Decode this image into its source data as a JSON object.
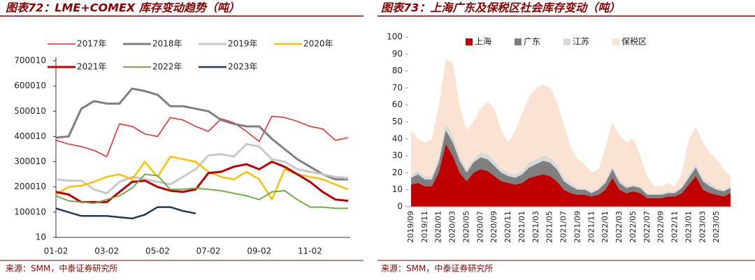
{
  "chart_data": [
    {
      "type": "line",
      "title": "图表72：LME+COMEX 库存变动趋势（吨）",
      "source": "来源：SMM，中泰证券研究所",
      "categories": [
        "01-02",
        null,
        null,
        null,
        "03-02",
        null,
        null,
        null,
        "05-02",
        null,
        null,
        null,
        "07-02",
        null,
        null,
        null,
        "09-02",
        null,
        null,
        null,
        "11-02",
        null,
        null,
        null
      ],
      "ylim": [
        10,
        700010
      ],
      "yticks": [
        10,
        100010,
        200010,
        300010,
        400010,
        500010,
        600010,
        700010
      ],
      "series": [
        {
          "name": "2017年",
          "color": "#ff2020",
          "width": 1.5,
          "values": [
            385000,
            370000,
            360000,
            345000,
            320000,
            450000,
            440000,
            410000,
            400000,
            475000,
            465000,
            440000,
            420000,
            470000,
            455000,
            420000,
            380000,
            480000,
            475000,
            460000,
            440000,
            430000,
            385000,
            395000
          ]
        },
        {
          "name": "2018年",
          "color": "#7f7f7f",
          "width": 3,
          "values": [
            395000,
            400000,
            510000,
            540000,
            530000,
            530000,
            590000,
            580000,
            565000,
            520000,
            520000,
            510000,
            500000,
            465000,
            450000,
            440000,
            440000,
            390000,
            350000,
            310000,
            280000,
            250000,
            230000,
            230000
          ]
        },
        {
          "name": "2019年",
          "color": "#c8c8c8",
          "width": 3,
          "values": [
            230000,
            225000,
            225000,
            190000,
            175000,
            220000,
            240000,
            230000,
            220000,
            210000,
            240000,
            270000,
            325000,
            330000,
            320000,
            370000,
            360000,
            310000,
            300000,
            270000,
            260000,
            250000,
            240000,
            235000
          ]
        },
        {
          "name": "2020年",
          "color": "#ffc000",
          "width": 2.5,
          "values": [
            170000,
            200000,
            205000,
            220000,
            240000,
            250000,
            230000,
            300000,
            240000,
            320000,
            310000,
            300000,
            260000,
            240000,
            230000,
            260000,
            230000,
            150000,
            270000,
            250000,
            240000,
            230000,
            210000,
            190000
          ]
        },
        {
          "name": "2021年",
          "color": "#c00000",
          "width": 3,
          "values": [
            180000,
            170000,
            140000,
            140000,
            140000,
            180000,
            220000,
            225000,
            200000,
            185000,
            180000,
            190000,
            255000,
            260000,
            280000,
            290000,
            270000,
            300000,
            280000,
            250000,
            220000,
            180000,
            150000,
            145000
          ]
        },
        {
          "name": "2022年",
          "color": "#70ad47",
          "width": 2,
          "values": [
            165000,
            145000,
            140000,
            135000,
            150000,
            165000,
            195000,
            250000,
            245000,
            190000,
            190000,
            195000,
            190000,
            185000,
            175000,
            165000,
            150000,
            180000,
            185000,
            150000,
            120000,
            120000,
            115000,
            115000
          ]
        },
        {
          "name": "2023年",
          "color": "#1f3864",
          "width": 2.5,
          "values": [
            115000,
            100000,
            85000,
            85000,
            85000,
            80000,
            75000,
            90000,
            120000,
            120000,
            105000,
            95000,
            null,
            null,
            null,
            null,
            null,
            null,
            null,
            null,
            null,
            null,
            null,
            null
          ]
        }
      ]
    },
    {
      "type": "stacked_area",
      "title": "图表73：上海广东及保税区社会库存变动（吨）",
      "source": "来源：SMM，中泰证券研究所",
      "categories": [
        "2019/09",
        null,
        "2019/11",
        null,
        "2020/01",
        null,
        "2020/03",
        null,
        "2020/05",
        null,
        "2020/07",
        null,
        "2020/09",
        null,
        "2020/11",
        null,
        "2021/01",
        null,
        "2021/03",
        null,
        "2021/05",
        null,
        "2021/07",
        null,
        "2021/09",
        null,
        "2021/11",
        null,
        "2022/01",
        null,
        "2022/03",
        null,
        "2022/05",
        null,
        "2022/07",
        null,
        "2022/09",
        null,
        "2022/11",
        null,
        "2023/01",
        null,
        "2023/03",
        null,
        "2023/05",
        null,
        null
      ],
      "ylim": [
        0,
        100
      ],
      "yticks": [
        0,
        10,
        20,
        30,
        40,
        50,
        60,
        70,
        80,
        90,
        100
      ],
      "series": [
        {
          "name": "上海",
          "color": "#c00000",
          "values": [
            13,
            14,
            12,
            12,
            20,
            37,
            30,
            20,
            15,
            20,
            22,
            21,
            18,
            15,
            14,
            13,
            14,
            17,
            18,
            19,
            18,
            15,
            10,
            8,
            7,
            7,
            6,
            7,
            10,
            17,
            10,
            8,
            9,
            8,
            5,
            5,
            5,
            6,
            6,
            8,
            13,
            18,
            10,
            8,
            7,
            6,
            8
          ]
        },
        {
          "name": "广东",
          "color": "#7f7f7f",
          "values": [
            4,
            5,
            4,
            4,
            6,
            8,
            8,
            7,
            5,
            6,
            7,
            7,
            6,
            5,
            4,
            4,
            5,
            6,
            7,
            8,
            8,
            7,
            5,
            4,
            3,
            3,
            2,
            3,
            4,
            5,
            4,
            3,
            3,
            3,
            2,
            2,
            2,
            2,
            2,
            3,
            4,
            5,
            5,
            4,
            3,
            3,
            3
          ]
        },
        {
          "name": "江苏",
          "color": "#d9d9d9",
          "values": [
            2,
            2,
            2,
            2,
            3,
            4,
            4,
            3,
            2,
            2,
            3,
            3,
            3,
            2,
            2,
            2,
            2,
            3,
            3,
            3,
            3,
            3,
            2,
            2,
            1,
            1,
            1,
            1,
            2,
            2,
            2,
            1,
            1,
            1,
            1,
            1,
            1,
            1,
            1,
            1,
            2,
            2,
            2,
            2,
            1,
            1,
            1
          ]
        },
        {
          "name": "保税区",
          "color": "#fbe3d4",
          "values": [
            26,
            19,
            20,
            22,
            31,
            38,
            43,
            30,
            23,
            22,
            26,
            31,
            31,
            23,
            18,
            26,
            34,
            39,
            42,
            42,
            41,
            37,
            31,
            21,
            17,
            14,
            11,
            11,
            19,
            26,
            26,
            26,
            27,
            18,
            10,
            4,
            4,
            5,
            3,
            8,
            21,
            22,
            21,
            18,
            17,
            12,
            6
          ]
        }
      ]
    }
  ]
}
